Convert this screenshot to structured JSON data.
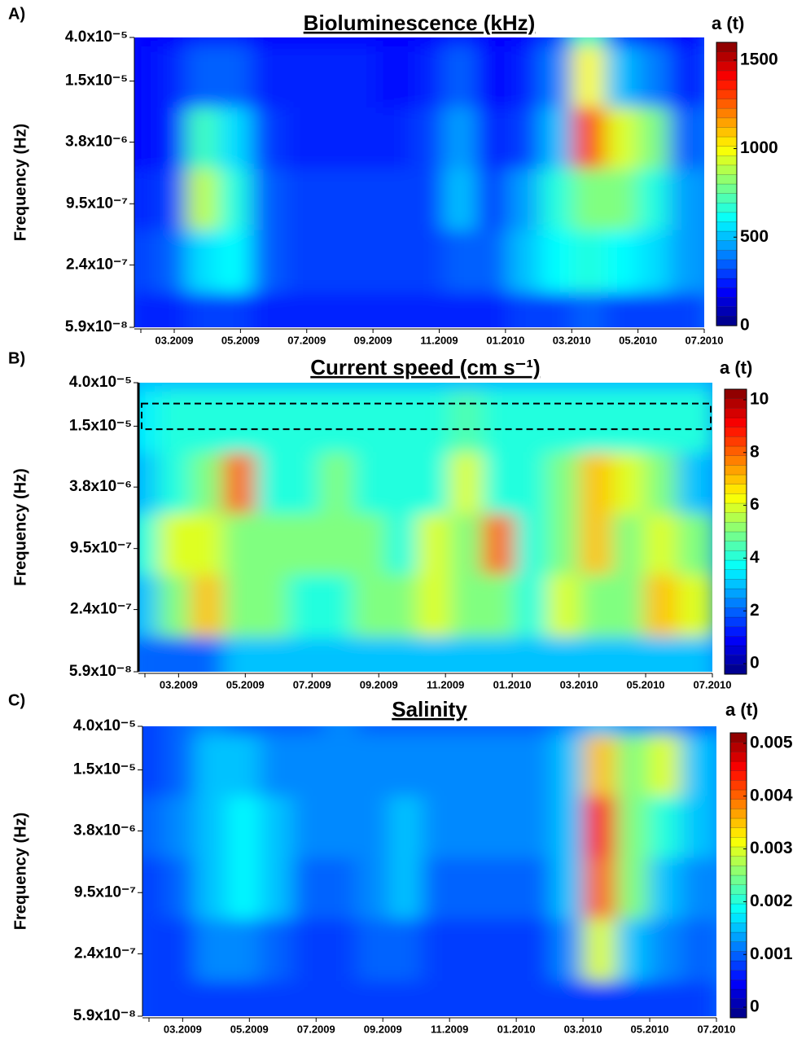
{
  "chart_data": [
    {
      "type": "heatmap",
      "panel": "A)",
      "title": "Bioluminescence (kHz)",
      "y_label": "Frequency (Hz)",
      "colorbar_label": "a (t)",
      "log_y": true,
      "ylim": [
        5.9e-08,
        4e-05
      ],
      "yticks": [
        {
          "value": 4e-05,
          "label": "4.0x10⁻⁵"
        },
        {
          "value": 1.5e-05,
          "label": "1.5x10⁻⁵"
        },
        {
          "value": 3.8e-06,
          "label": "3.8x10⁻⁶"
        },
        {
          "value": 9.5e-07,
          "label": "9.5x10⁻⁷"
        },
        {
          "value": 2.4e-07,
          "label": "2.4x10⁻⁷"
        },
        {
          "value": 5.9e-08,
          "label": "5.9x10⁻⁸"
        }
      ],
      "xticks": [
        "03.2009",
        "05.2009",
        "07.2009",
        "09.2009",
        "11.2009",
        "01.2010",
        "03.2010",
        "05.2010",
        "07.2010"
      ],
      "clim": [
        0,
        1600
      ],
      "cticks": [
        0,
        500,
        1000,
        1500
      ],
      "z": [
        [
          200,
          200,
          250,
          250,
          200,
          200,
          200,
          200,
          200,
          200,
          250,
          200,
          200,
          300,
          700,
          300,
          250,
          200
        ],
        [
          200,
          250,
          350,
          350,
          250,
          250,
          250,
          250,
          200,
          250,
          350,
          200,
          250,
          400,
          1000,
          500,
          400,
          250
        ],
        [
          200,
          250,
          700,
          550,
          300,
          250,
          250,
          250,
          250,
          300,
          450,
          250,
          300,
          500,
          1300,
          950,
          800,
          350
        ],
        [
          250,
          300,
          900,
          650,
          350,
          300,
          300,
          300,
          300,
          300,
          500,
          300,
          450,
          650,
          800,
          800,
          650,
          450
        ],
        [
          300,
          350,
          550,
          600,
          350,
          300,
          300,
          300,
          300,
          300,
          350,
          350,
          500,
          600,
          650,
          600,
          550,
          450
        ],
        [
          250,
          250,
          300,
          300,
          250,
          250,
          250,
          250,
          250,
          250,
          250,
          250,
          300,
          300,
          350,
          300,
          300,
          300
        ]
      ]
    },
    {
      "type": "heatmap",
      "panel": "B)",
      "title": "Current speed (cm s⁻¹)",
      "y_label": "Frequency (Hz)",
      "colorbar_label": "a (t)",
      "log_y": true,
      "ylim": [
        5.9e-08,
        4e-05
      ],
      "yticks": [
        {
          "value": 4e-05,
          "label": "4.0x10⁻⁵"
        },
        {
          "value": 1.5e-05,
          "label": "1.5x10⁻⁵"
        },
        {
          "value": 3.8e-06,
          "label": "3.8x10⁻⁶"
        },
        {
          "value": 9.5e-07,
          "label": "9.5x10⁻⁷"
        },
        {
          "value": 2.4e-07,
          "label": "2.4x10⁻⁷"
        },
        {
          "value": 5.9e-08,
          "label": "5.9x10⁻⁸"
        }
      ],
      "xticks": [
        "03.2009",
        "05.2009",
        "07.2009",
        "09.2009",
        "11.2009",
        "01.2010",
        "03.2010",
        "05.2010",
        "07.2010"
      ],
      "clim": [
        -0.4,
        10.4
      ],
      "cticks": [
        0,
        2,
        4,
        6,
        8,
        10
      ],
      "highlight": [
        1.4e-05,
        2.5e-05
      ],
      "z": [
        [
          3,
          3,
          3,
          3,
          3,
          3,
          3,
          3,
          3,
          3,
          3,
          3,
          3,
          3,
          3,
          3,
          3,
          3
        ],
        [
          3.5,
          4,
          4,
          4,
          4,
          4,
          4,
          4,
          4,
          4,
          4.5,
          4,
          4,
          4,
          4,
          4,
          4,
          4
        ],
        [
          3,
          4,
          5,
          8,
          4,
          4,
          5,
          4,
          4,
          4,
          6,
          4,
          4,
          5,
          7,
          6,
          5,
          3
        ],
        [
          4,
          6,
          6,
          5,
          5,
          5,
          5,
          5,
          4,
          6,
          5,
          8,
          4,
          5,
          7,
          5,
          6,
          5
        ],
        [
          3,
          5,
          7,
          5,
          5,
          4,
          4,
          5,
          5,
          6,
          5,
          5,
          4,
          6,
          5,
          5,
          7,
          6
        ],
        [
          2,
          2,
          2,
          3,
          3,
          3,
          3,
          3,
          3,
          3,
          3,
          3,
          3,
          3,
          3,
          3,
          3,
          3
        ]
      ]
    },
    {
      "type": "heatmap",
      "panel": "C)",
      "title": "Salinity",
      "y_label": "Frequency (Hz)",
      "colorbar_label": "a (t)",
      "log_y": true,
      "ylim": [
        5.9e-08,
        4e-05
      ],
      "yticks": [
        {
          "value": 4e-05,
          "label": "4.0x10⁻⁵"
        },
        {
          "value": 1.5e-05,
          "label": "1.5x10⁻⁵"
        },
        {
          "value": 3.8e-06,
          "label": "3.8x10⁻⁶"
        },
        {
          "value": 9.5e-07,
          "label": "9.5x10⁻⁷"
        },
        {
          "value": 2.4e-07,
          "label": "2.4x10⁻⁷"
        },
        {
          "value": 5.9e-08,
          "label": "5.9x10⁻⁸"
        }
      ],
      "xticks": [
        "03.2009",
        "05.2009",
        "07.2009",
        "09.2009",
        "11.2009",
        "01.2010",
        "03.2010",
        "05.2010",
        "07.2010"
      ],
      "clim": [
        -0.0002,
        0.0052
      ],
      "cticks": [
        0,
        0.001,
        0.002,
        0.003,
        0.004,
        0.005
      ],
      "z": [
        [
          0.0008,
          0.001,
          0.0012,
          0.001,
          0.001,
          0.001,
          0.0012,
          0.001,
          0.001,
          0.001,
          0.001,
          0.001,
          0.001,
          0.0012,
          0.0015,
          0.0012,
          0.0012,
          0.001
        ],
        [
          0.0008,
          0.001,
          0.0015,
          0.0015,
          0.0012,
          0.0012,
          0.0012,
          0.0012,
          0.0012,
          0.0012,
          0.0012,
          0.0012,
          0.0012,
          0.0015,
          0.0035,
          0.0025,
          0.003,
          0.0015
        ],
        [
          0.001,
          0.0012,
          0.0015,
          0.0018,
          0.0015,
          0.0012,
          0.0012,
          0.0012,
          0.0015,
          0.0012,
          0.0012,
          0.0012,
          0.0012,
          0.0015,
          0.0045,
          0.0025,
          0.002,
          0.0015
        ],
        [
          0.0008,
          0.001,
          0.0015,
          0.0018,
          0.0015,
          0.001,
          0.001,
          0.0012,
          0.0015,
          0.001,
          0.001,
          0.001,
          0.001,
          0.0015,
          0.004,
          0.0025,
          0.0015,
          0.0012
        ],
        [
          0.0008,
          0.0008,
          0.0012,
          0.0012,
          0.001,
          0.0008,
          0.0008,
          0.001,
          0.001,
          0.0008,
          0.0008,
          0.0008,
          0.0008,
          0.0012,
          0.003,
          0.0015,
          0.0012,
          0.001
        ],
        [
          0.0008,
          0.0008,
          0.0008,
          0.0008,
          0.0008,
          0.0008,
          0.0008,
          0.0008,
          0.0008,
          0.0008,
          0.0008,
          0.0008,
          0.0008,
          0.0008,
          0.0008,
          0.0008,
          0.0008,
          0.0008
        ]
      ]
    }
  ]
}
